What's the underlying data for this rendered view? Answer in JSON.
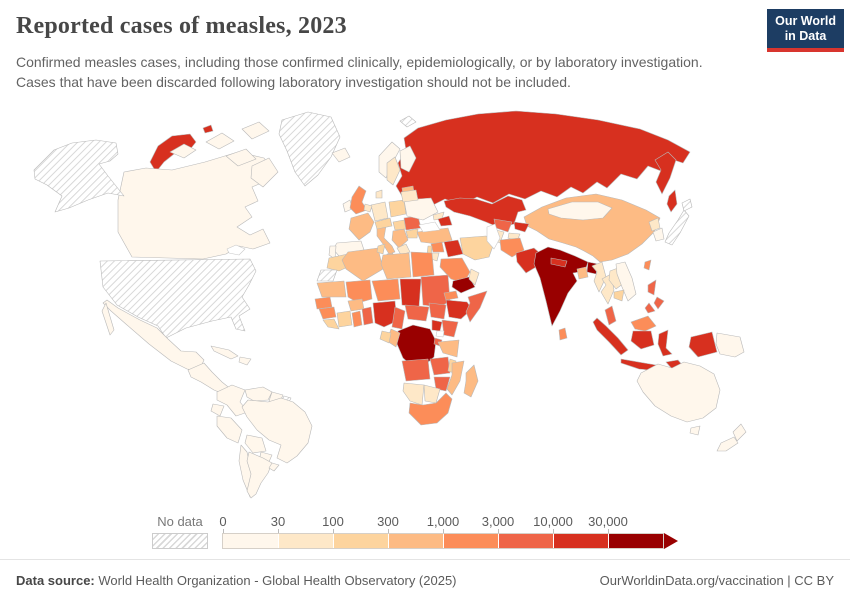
{
  "header": {
    "title": "Reported cases of measles, 2023",
    "subtitle_line1": "Confirmed measles cases, including those confirmed clinically, epidemiologically, or by laboratory investigation.",
    "subtitle_line2": "Cases that have been discarded following laboratory investigation should not be included.",
    "logo": {
      "line1": "Our World",
      "line2": "in Data",
      "bg_color": "#1d3d63",
      "accent_color": "#d8352e"
    }
  },
  "footer": {
    "datasource_label": "Data source:",
    "datasource_text": " World Health Organization - Global Health Observatory (2025)",
    "credit": "OurWorldinData.org/vaccination | CC BY"
  },
  "chart_data": {
    "type": "choropleth-map",
    "title": "Reported cases of measles, 2023",
    "unit": "reported measles cases",
    "map": {
      "ocean_color": "#ffffff",
      "border_color": "#b9b9b9",
      "no_data_pattern_color": "#d4d4d4"
    },
    "legend": {
      "no_data_label": "No data",
      "tick_labels": [
        "0",
        "30",
        "100",
        "300",
        "1,000",
        "3,000",
        "10,000",
        "30,000"
      ],
      "bin_ranges": [
        "0-30",
        "30-100",
        "100-300",
        "300-1,000",
        "1,000-3,000",
        "3,000-10,000",
        "10,000-30,000",
        "30,000+"
      ],
      "bin_colors": [
        "#fff7ec",
        "#fee8c8",
        "#fdd49e",
        "#fdbb84",
        "#fc8d59",
        "#ef6548",
        "#d7301f",
        "#990000"
      ]
    },
    "countries": [
      {
        "id": "usa",
        "name": "United States",
        "bin": "no-data"
      },
      {
        "id": "greenland",
        "name": "Greenland",
        "bin": "no-data"
      },
      {
        "id": "french-guiana",
        "name": "French Guiana",
        "bin": "no-data"
      },
      {
        "id": "western-sahara",
        "name": "Western Sahara",
        "bin": "no-data"
      },
      {
        "id": "japan",
        "name": "Japan",
        "bin": "no-data"
      },
      {
        "id": "arctic-islands",
        "name": "Arctic islands",
        "bin": "no-data"
      },
      {
        "id": "canada",
        "name": "Canada",
        "bin": 0
      },
      {
        "id": "mexico",
        "name": "Mexico",
        "bin": 0
      },
      {
        "id": "central-america",
        "name": "Central America",
        "bin": 0
      },
      {
        "id": "cuba",
        "name": "Cuba",
        "bin": 0
      },
      {
        "id": "hispaniola",
        "name": "Hispaniola",
        "bin": 0
      },
      {
        "id": "colombia",
        "name": "Colombia",
        "bin": 0
      },
      {
        "id": "venezuela",
        "name": "Venezuela",
        "bin": 0
      },
      {
        "id": "guyana",
        "name": "Guyana",
        "bin": 0
      },
      {
        "id": "ecuador",
        "name": "Ecuador",
        "bin": 0
      },
      {
        "id": "peru",
        "name": "Peru",
        "bin": 0
      },
      {
        "id": "brazil",
        "name": "Brazil",
        "bin": 0
      },
      {
        "id": "bolivia",
        "name": "Bolivia",
        "bin": 0
      },
      {
        "id": "paraguay",
        "name": "Paraguay",
        "bin": 0
      },
      {
        "id": "chile",
        "name": "Chile",
        "bin": 0
      },
      {
        "id": "argentina",
        "name": "Argentina",
        "bin": 0
      },
      {
        "id": "uruguay",
        "name": "Uruguay",
        "bin": 0
      },
      {
        "id": "iceland",
        "name": "Iceland",
        "bin": 0
      },
      {
        "id": "ireland",
        "name": "Ireland",
        "bin": 0
      },
      {
        "id": "norway",
        "name": "Norway",
        "bin": 0
      },
      {
        "id": "finland",
        "name": "Finland",
        "bin": 0
      },
      {
        "id": "spain",
        "name": "Spain",
        "bin": 0
      },
      {
        "id": "portugal",
        "name": "Portugal",
        "bin": 0
      },
      {
        "id": "ukraine",
        "name": "Ukraine",
        "bin": 0
      },
      {
        "id": "mongolia",
        "name": "Mongolia",
        "bin": 0
      },
      {
        "id": "south-korea",
        "name": "South Korea",
        "bin": 0
      },
      {
        "id": "vietnam",
        "name": "Vietnam",
        "bin": 0
      },
      {
        "id": "papua-new-guinea",
        "name": "Papua New Guinea",
        "bin": 0
      },
      {
        "id": "australia",
        "name": "Australia",
        "bin": 0
      },
      {
        "id": "new-zealand",
        "name": "New Zealand",
        "bin": 0
      },
      {
        "id": "sweden",
        "name": "Sweden",
        "bin": 1
      },
      {
        "id": "denmark",
        "name": "Denmark",
        "bin": 1
      },
      {
        "id": "germany",
        "name": "Germany",
        "bin": 1
      },
      {
        "id": "benelux",
        "name": "Benelux",
        "bin": 1
      },
      {
        "id": "belarus",
        "name": "Belarus",
        "bin": 1
      },
      {
        "id": "greece",
        "name": "Greece",
        "bin": 1
      },
      {
        "id": "georgia",
        "name": "Georgia",
        "bin": 1
      },
      {
        "id": "jordan",
        "name": "Jordan",
        "bin": 1
      },
      {
        "id": "oman",
        "name": "Oman",
        "bin": 1
      },
      {
        "id": "turkmenistan",
        "name": "Turkmenistan",
        "bin": 1
      },
      {
        "id": "tajikistan",
        "name": "Tajikistan",
        "bin": 1
      },
      {
        "id": "myanmar",
        "name": "Myanmar",
        "bin": 1
      },
      {
        "id": "thailand",
        "name": "Thailand",
        "bin": 1
      },
      {
        "id": "laos",
        "name": "Laos",
        "bin": 1
      },
      {
        "id": "north-korea",
        "name": "North Korea",
        "bin": 1
      },
      {
        "id": "botswana",
        "name": "Botswana",
        "bin": 1
      },
      {
        "id": "namibia",
        "name": "Namibia",
        "bin": 1
      },
      {
        "id": "poland",
        "name": "Poland",
        "bin": 2
      },
      {
        "id": "hungary",
        "name": "Hungary",
        "bin": 2
      },
      {
        "id": "bulgaria",
        "name": "Bulgaria",
        "bin": 2
      },
      {
        "id": "central-europe",
        "name": "Austria-Czechia",
        "bin": 2
      },
      {
        "id": "morocco",
        "name": "Morocco",
        "bin": 2
      },
      {
        "id": "tunisia",
        "name": "Tunisia",
        "bin": 2
      },
      {
        "id": "iran",
        "name": "Iran",
        "bin": 2
      },
      {
        "id": "israel-lebanon",
        "name": "Israel-Lebanon",
        "bin": 2
      },
      {
        "id": "cote-divoire",
        "name": "Cote d'Ivoire",
        "bin": 2
      },
      {
        "id": "sierra-leone-liberia",
        "name": "Sierra Leone-Liberia",
        "bin": 2
      },
      {
        "id": "gabon",
        "name": "Gabon",
        "bin": 2
      },
      {
        "id": "malawi",
        "name": "Malawi",
        "bin": 2
      },
      {
        "id": "cambodia",
        "name": "Cambodia",
        "bin": 2
      },
      {
        "id": "france",
        "name": "France",
        "bin": 3
      },
      {
        "id": "italy",
        "name": "Italy",
        "bin": 3
      },
      {
        "id": "balkans",
        "name": "Balkans",
        "bin": 3
      },
      {
        "id": "baltics",
        "name": "Baltic states",
        "bin": 3
      },
      {
        "id": "turkey",
        "name": "Turkey",
        "bin": 3
      },
      {
        "id": "algeria",
        "name": "Algeria",
        "bin": 3
      },
      {
        "id": "libya",
        "name": "Libya",
        "bin": 3
      },
      {
        "id": "mauritania",
        "name": "Mauritania",
        "bin": 3
      },
      {
        "id": "burkina-faso",
        "name": "Burkina Faso",
        "bin": 3
      },
      {
        "id": "congo",
        "name": "Congo",
        "bin": 3
      },
      {
        "id": "tanzania",
        "name": "Tanzania",
        "bin": 3
      },
      {
        "id": "mozambique",
        "name": "Mozambique",
        "bin": 3
      },
      {
        "id": "madagascar",
        "name": "Madagascar",
        "bin": 3
      },
      {
        "id": "bangladesh",
        "name": "Bangladesh",
        "bin": 3
      },
      {
        "id": "china",
        "name": "China",
        "bin": 3
      },
      {
        "id": "uk",
        "name": "United Kingdom",
        "bin": 4
      },
      {
        "id": "egypt",
        "name": "Egypt",
        "bin": 4
      },
      {
        "id": "mali",
        "name": "Mali",
        "bin": 4
      },
      {
        "id": "niger",
        "name": "Niger",
        "bin": 4
      },
      {
        "id": "senegal",
        "name": "Senegal",
        "bin": 4
      },
      {
        "id": "guinea",
        "name": "Guinea",
        "bin": 4
      },
      {
        "id": "ghana",
        "name": "Ghana",
        "bin": 4
      },
      {
        "id": "eritrea",
        "name": "Eritrea",
        "bin": 4
      },
      {
        "id": "south-africa",
        "name": "South Africa",
        "bin": 4
      },
      {
        "id": "saudi-arabia",
        "name": "Saudi Arabia",
        "bin": 4
      },
      {
        "id": "syria",
        "name": "Syria",
        "bin": 4
      },
      {
        "id": "afghanistan",
        "name": "Afghanistan",
        "bin": 4
      },
      {
        "id": "sri-lanka",
        "name": "Sri Lanka",
        "bin": 4
      },
      {
        "id": "taiwan",
        "name": "Taiwan",
        "bin": 4
      },
      {
        "id": "malaysia-borneo",
        "name": "Malaysia (Borneo)",
        "bin": 4
      },
      {
        "id": "romania",
        "name": "Romania",
        "bin": 5
      },
      {
        "id": "sudan",
        "name": "Sudan",
        "bin": 5
      },
      {
        "id": "togo-benin",
        "name": "Togo-Benin",
        "bin": 5
      },
      {
        "id": "cameroon",
        "name": "Cameroon",
        "bin": 5
      },
      {
        "id": "central-african-republic",
        "name": "Central African Republic",
        "bin": 5
      },
      {
        "id": "south-sudan",
        "name": "South Sudan",
        "bin": 5
      },
      {
        "id": "somalia",
        "name": "Somalia",
        "bin": 5
      },
      {
        "id": "kenya",
        "name": "Kenya",
        "bin": 5
      },
      {
        "id": "rwanda-burundi",
        "name": "Rwanda-Burundi",
        "bin": 5
      },
      {
        "id": "angola",
        "name": "Angola",
        "bin": 5
      },
      {
        "id": "zambia",
        "name": "Zambia",
        "bin": 5
      },
      {
        "id": "zimbabwe",
        "name": "Zimbabwe",
        "bin": 5
      },
      {
        "id": "uzbekistan",
        "name": "Uzbekistan",
        "bin": 5
      },
      {
        "id": "peninsular-malaysia",
        "name": "Malaysia (Peninsular)",
        "bin": 5
      },
      {
        "id": "philippines",
        "name": "Philippines",
        "bin": 5
      },
      {
        "id": "russia",
        "name": "Russia",
        "bin": 6
      },
      {
        "id": "kazakhstan",
        "name": "Kazakhstan",
        "bin": 6
      },
      {
        "id": "kyrgyzstan",
        "name": "Kyrgyzstan",
        "bin": 6
      },
      {
        "id": "azerbaijan",
        "name": "Azerbaijan",
        "bin": 6
      },
      {
        "id": "iraq",
        "name": "Iraq",
        "bin": 6
      },
      {
        "id": "pakistan",
        "name": "Pakistan",
        "bin": 6
      },
      {
        "id": "nepal",
        "name": "Nepal",
        "bin": 6
      },
      {
        "id": "chad",
        "name": "Chad",
        "bin": 6
      },
      {
        "id": "nigeria",
        "name": "Nigeria",
        "bin": 6
      },
      {
        "id": "ethiopia",
        "name": "Ethiopia",
        "bin": 6
      },
      {
        "id": "uganda",
        "name": "Uganda",
        "bin": 6
      },
      {
        "id": "indonesia",
        "name": "Indonesia",
        "bin": 6
      },
      {
        "id": "india",
        "name": "India",
        "bin": 7
      },
      {
        "id": "yemen",
        "name": "Yemen",
        "bin": 7
      },
      {
        "id": "drc",
        "name": "Democratic Republic of Congo",
        "bin": 7
      }
    ]
  }
}
